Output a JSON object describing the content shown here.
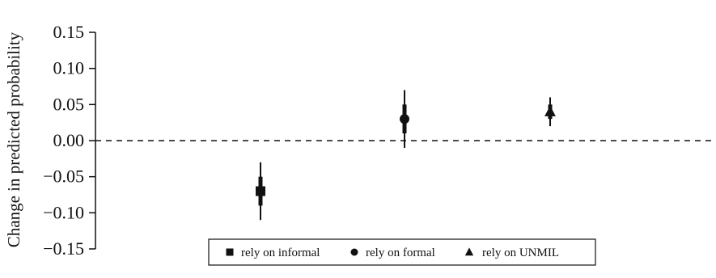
{
  "chart_data": {
    "type": "scatter",
    "title": "",
    "xlabel": "",
    "ylabel": "Change in predicted probability",
    "ylim": [
      -0.15,
      0.15
    ],
    "y_ticks": [
      0.15,
      0.1,
      0.05,
      0.0,
      -0.05,
      -0.1,
      -0.15
    ],
    "y_tick_labels": [
      "0.15",
      "0.10",
      "0.05",
      "0.00",
      "−0.05",
      "−0.10",
      "−0.15"
    ],
    "reference_line": {
      "y": 0,
      "style": "dashed"
    },
    "grid": false,
    "legend_position": "bottom-center",
    "series": [
      {
        "name": "rely on informal",
        "marker": "square",
        "x": 1,
        "estimate": -0.07,
        "ci_inner": [
          -0.09,
          -0.05
        ],
        "ci_outer": [
          -0.11,
          -0.03
        ]
      },
      {
        "name": "rely on formal",
        "marker": "circle",
        "x": 2,
        "estimate": 0.03,
        "ci_inner": [
          0.01,
          0.05
        ],
        "ci_outer": [
          -0.01,
          0.07
        ]
      },
      {
        "name": "rely on UNMIL",
        "marker": "triangle",
        "x": 3,
        "estimate": 0.04,
        "ci_inner": [
          0.03,
          0.05
        ],
        "ci_outer": [
          0.02,
          0.06
        ]
      }
    ],
    "colors": {
      "marks": "#111111",
      "axis": "#111111"
    }
  }
}
